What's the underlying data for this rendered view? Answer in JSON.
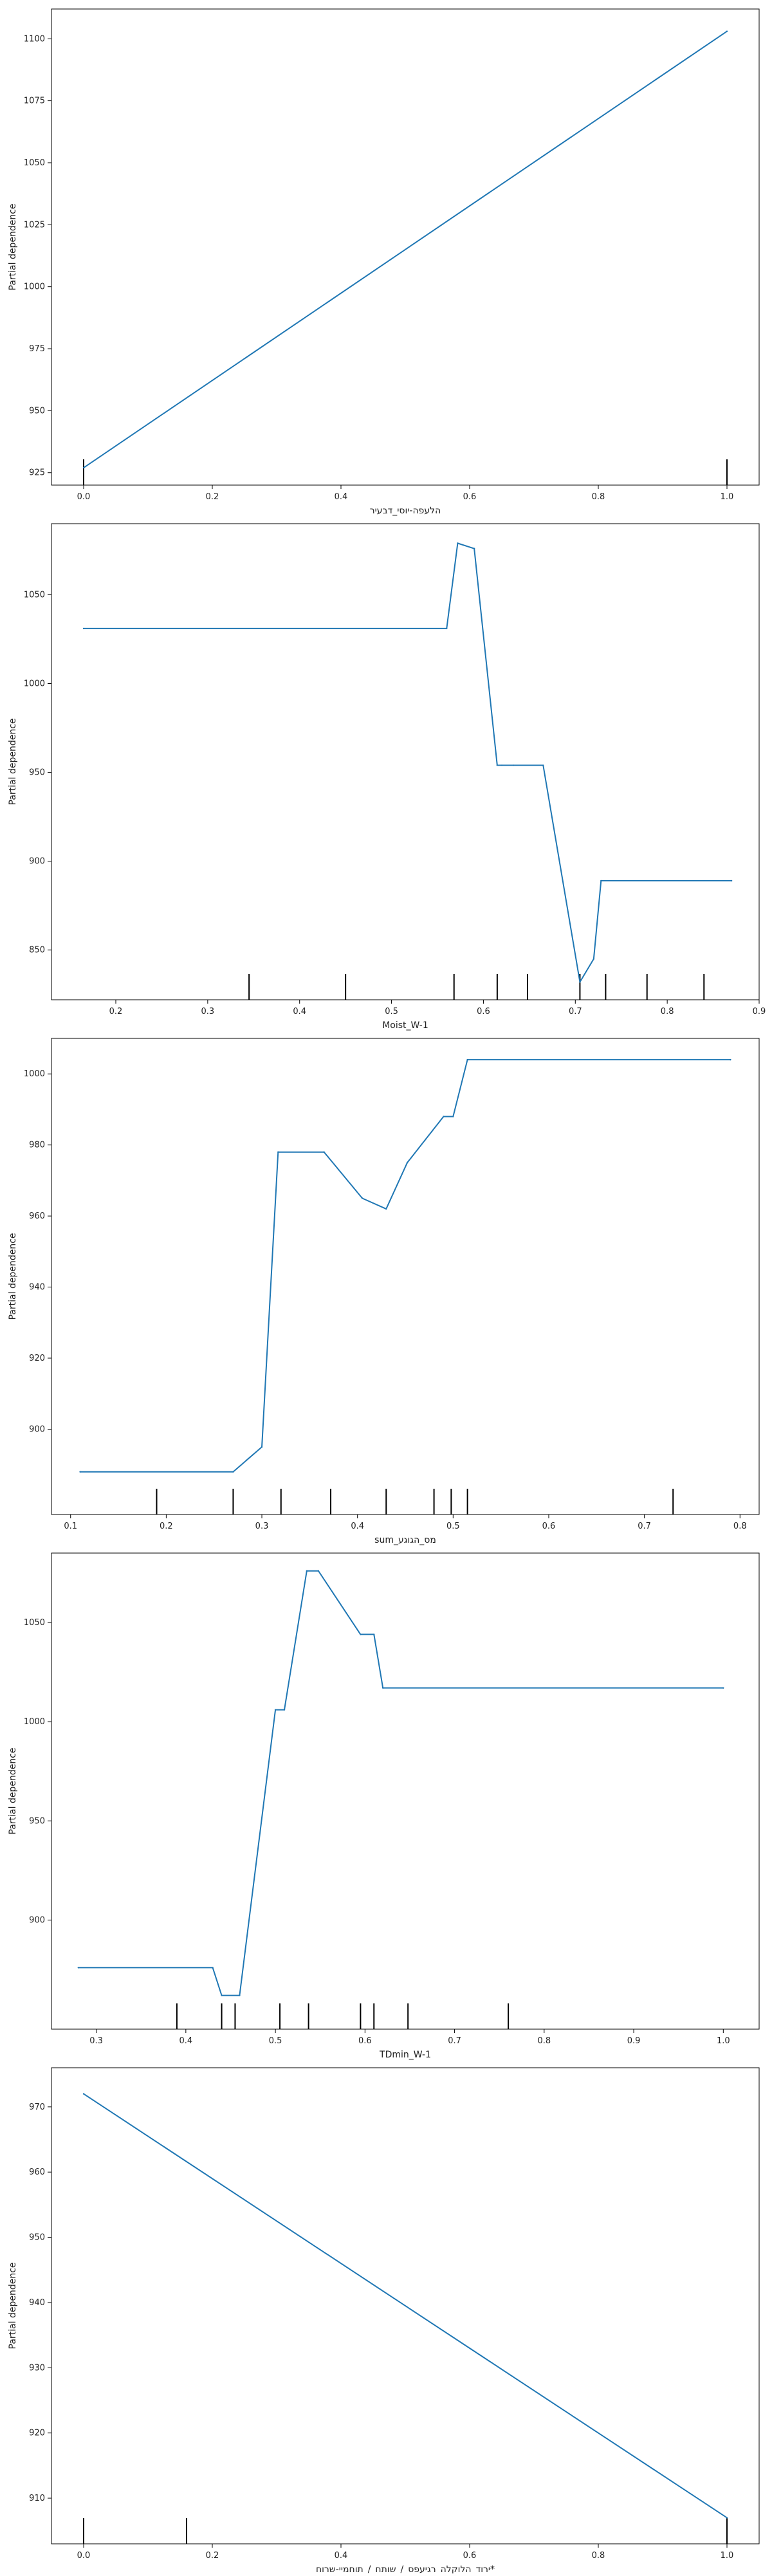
{
  "colors": {
    "line": "#1f77b4",
    "rug": "#000000",
    "axis": "#000000"
  },
  "chart_data": [
    {
      "type": "line",
      "xlabel": "הלעפה-יוסי_דבעיר",
      "ylabel": "Partial dependence",
      "xlim": [
        -0.05,
        1.05
      ],
      "ylim": [
        920,
        1112
      ],
      "xticks": [
        0.0,
        0.2,
        0.4,
        0.6,
        0.8,
        1.0
      ],
      "xtick_labels": [
        "0.0",
        "0.2",
        "0.4",
        "0.6",
        "0.8",
        "1.0"
      ],
      "yticks": [
        925,
        950,
        975,
        1000,
        1025,
        1050,
        1075,
        1100
      ],
      "ytick_labels": [
        "925",
        "950",
        "975",
        "1000",
        "1025",
        "1050",
        "1075",
        "1100"
      ],
      "x": [
        0.0,
        1.0
      ],
      "y": [
        927,
        1103
      ],
      "rug": [
        0.0,
        1.0
      ]
    },
    {
      "type": "line",
      "xlabel": "Moist_W-1",
      "ylabel": "Partial dependence",
      "xlim": [
        0.13,
        0.9
      ],
      "ylim": [
        822,
        1090
      ],
      "xticks": [
        0.2,
        0.3,
        0.4,
        0.5,
        0.6,
        0.7,
        0.8,
        0.9
      ],
      "xtick_labels": [
        "0.2",
        "0.3",
        "0.4",
        "0.5",
        "0.6",
        "0.7",
        "0.8",
        "0.9"
      ],
      "yticks": [
        850,
        900,
        950,
        1000,
        1050
      ],
      "ytick_labels": [
        "850",
        "900",
        "950",
        "1000",
        "1050"
      ],
      "x": [
        0.165,
        0.56,
        0.572,
        0.59,
        0.615,
        0.62,
        0.633,
        0.665,
        0.705,
        0.72,
        0.728,
        0.87
      ],
      "y": [
        1031,
        1031,
        1079,
        1076,
        954,
        954,
        954,
        954,
        832,
        845,
        889,
        889
      ],
      "rug": [
        0.345,
        0.45,
        0.568,
        0.615,
        0.648,
        0.705,
        0.733,
        0.778,
        0.84
      ]
    },
    {
      "type": "line",
      "xlabel": "מס_הגוגע_sum",
      "ylabel": "Partial dependence",
      "xlim": [
        0.08,
        0.82
      ],
      "ylim": [
        876,
        1010
      ],
      "xticks": [
        0.1,
        0.2,
        0.3,
        0.4,
        0.5,
        0.6,
        0.7,
        0.8
      ],
      "xtick_labels": [
        "0.1",
        "0.2",
        "0.3",
        "0.4",
        "0.5",
        "0.6",
        "0.7",
        "0.8"
      ],
      "yticks": [
        900,
        920,
        940,
        960,
        980,
        1000
      ],
      "ytick_labels": [
        "900",
        "920",
        "940",
        "960",
        "980",
        "1000"
      ],
      "x": [
        0.11,
        0.27,
        0.3,
        0.317,
        0.365,
        0.405,
        0.43,
        0.452,
        0.49,
        0.5,
        0.515,
        0.79
      ],
      "y": [
        888,
        888,
        895,
        978,
        978,
        965,
        962,
        975,
        988,
        988,
        1004,
        1004
      ],
      "rug": [
        0.19,
        0.27,
        0.32,
        0.372,
        0.43,
        0.48,
        0.498,
        0.515,
        0.73
      ]
    },
    {
      "type": "line",
      "xlabel": "TDmin_W-1",
      "ylabel": "Partial dependence",
      "xlim": [
        0.25,
        1.04
      ],
      "ylim": [
        845,
        1085
      ],
      "xticks": [
        0.3,
        0.4,
        0.5,
        0.6,
        0.7,
        0.8,
        0.9,
        1.0
      ],
      "xtick_labels": [
        "0.3",
        "0.4",
        "0.5",
        "0.6",
        "0.7",
        "0.8",
        "0.9",
        "1.0"
      ],
      "yticks": [
        900,
        950,
        1000,
        1050
      ],
      "ytick_labels": [
        "900",
        "950",
        "1000",
        "1050"
      ],
      "x": [
        0.28,
        0.43,
        0.44,
        0.46,
        0.5,
        0.51,
        0.535,
        0.548,
        0.595,
        0.61,
        0.62,
        1.0
      ],
      "y": [
        876,
        876,
        862,
        862,
        1006,
        1006,
        1076,
        1076,
        1044,
        1044,
        1017,
        1017
      ],
      "rug": [
        0.39,
        0.44,
        0.455,
        0.505,
        0.537,
        0.595,
        0.61,
        0.648,
        0.76
      ]
    },
    {
      "type": "line",
      "xlabel": "*ירוד_הלוקלה_רגיעפס_/_שותח_/_תוחמיי-שרוח",
      "ylabel": "Partial dependence",
      "xlim": [
        -0.05,
        1.05
      ],
      "ylim": [
        903,
        976
      ],
      "xticks": [
        0.0,
        0.2,
        0.4,
        0.6,
        0.8,
        1.0
      ],
      "xtick_labels": [
        "0.0",
        "0.2",
        "0.4",
        "0.6",
        "0.8",
        "1.0"
      ],
      "yticks": [
        910,
        920,
        930,
        940,
        950,
        960,
        970
      ],
      "ytick_labels": [
        "910",
        "920",
        "930",
        "940",
        "950",
        "960",
        "970"
      ],
      "x": [
        0.0,
        1.0
      ],
      "y": [
        972,
        907
      ],
      "rug": [
        0.0,
        0.16,
        1.0
      ]
    }
  ]
}
